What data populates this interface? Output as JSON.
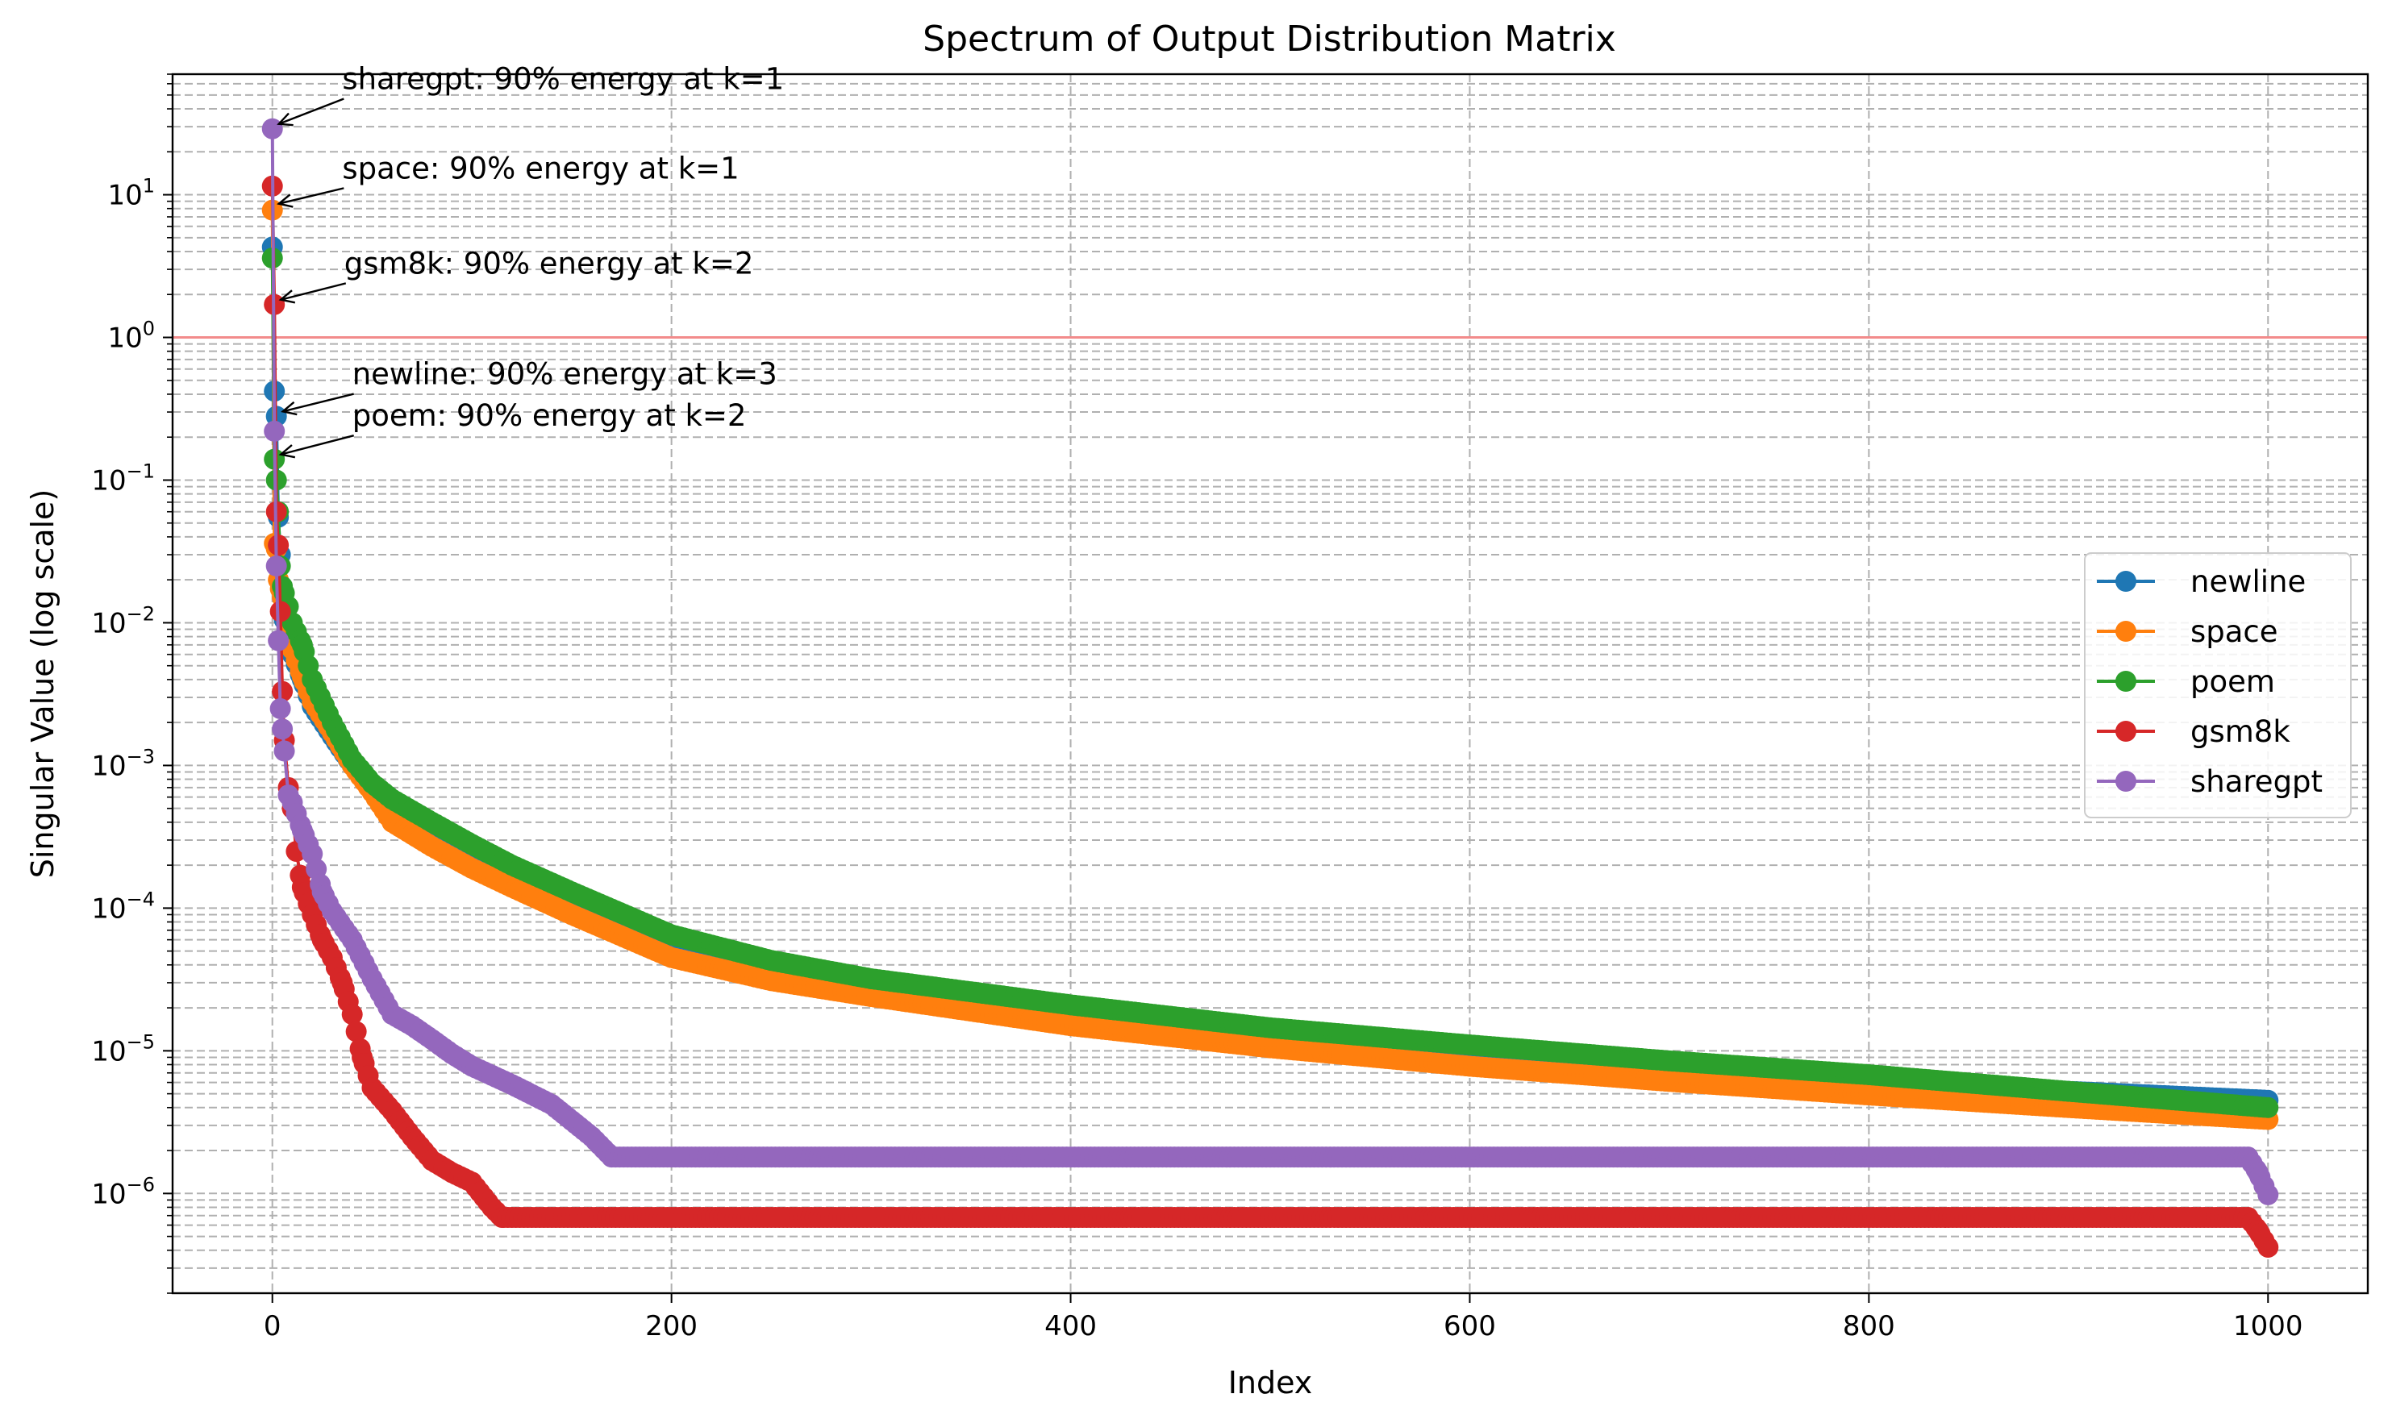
{
  "chart_data": {
    "type": "line",
    "title": "Spectrum of Output Distribution Matrix",
    "xlabel": "Index",
    "ylabel": "Singular Value (log scale)",
    "xlim": [
      -50,
      1050
    ],
    "ylim": [
      2e-07,
      70
    ],
    "yscale": "log",
    "grid": true,
    "xticks": [
      0,
      200,
      400,
      600,
      800,
      1000
    ],
    "xtick_labels": [
      "0",
      "200",
      "400",
      "600",
      "800",
      "1000"
    ],
    "yticks": [
      1e-06,
      1e-05,
      0.0001,
      0.001,
      0.01,
      0.1,
      1,
      10
    ],
    "ytick_labels": [
      {
        "base": "10",
        "exp": "−6"
      },
      {
        "base": "10",
        "exp": "−5"
      },
      {
        "base": "10",
        "exp": "−4"
      },
      {
        "base": "10",
        "exp": "−3"
      },
      {
        "base": "10",
        "exp": "−2"
      },
      {
        "base": "10",
        "exp": "−1"
      },
      {
        "base": "10",
        "exp": "0"
      },
      {
        "base": "10",
        "exp": "1"
      }
    ],
    "reference_line": {
      "y": 1,
      "color": "#f28b8b"
    },
    "legend_position": "center-right",
    "series": [
      {
        "name": "newline",
        "color": "#1f77b4",
        "points": [
          [
            0,
            4.3
          ],
          [
            1,
            0.42
          ],
          [
            2,
            0.28
          ],
          [
            3,
            0.055
          ],
          [
            4,
            0.03
          ],
          [
            5,
            0.012
          ],
          [
            8,
            0.008
          ],
          [
            10,
            0.006
          ],
          [
            15,
            0.004
          ],
          [
            20,
            0.0026
          ],
          [
            30,
            0.0016
          ],
          [
            40,
            0.001
          ],
          [
            50,
            0.0007
          ],
          [
            60,
            0.00052
          ],
          [
            80,
            0.00035
          ],
          [
            100,
            0.00023
          ],
          [
            120,
            0.00016
          ],
          [
            150,
            0.0001
          ],
          [
            200,
            5e-05
          ],
          [
            250,
            3.6e-05
          ],
          [
            300,
            2.8e-05
          ],
          [
            400,
            1.8e-05
          ],
          [
            500,
            1.25e-05
          ],
          [
            600,
            9.5e-06
          ],
          [
            700,
            7.5e-06
          ],
          [
            800,
            6.2e-06
          ],
          [
            900,
            5.2e-06
          ],
          [
            1000,
            4.5e-06
          ]
        ]
      },
      {
        "name": "space",
        "color": "#ff7f0e",
        "points": [
          [
            0,
            7.8
          ],
          [
            1,
            0.036
          ],
          [
            2,
            0.033
          ],
          [
            3,
            0.02
          ],
          [
            5,
            0.015
          ],
          [
            8,
            0.009
          ],
          [
            10,
            0.0065
          ],
          [
            15,
            0.0042
          ],
          [
            20,
            0.0028
          ],
          [
            30,
            0.0017
          ],
          [
            40,
            0.001
          ],
          [
            50,
            0.00065
          ],
          [
            60,
            0.0004
          ],
          [
            80,
            0.00027
          ],
          [
            100,
            0.00019
          ],
          [
            120,
            0.00014
          ],
          [
            150,
            9e-05
          ],
          [
            200,
            4.5e-05
          ],
          [
            250,
            3.1e-05
          ],
          [
            300,
            2.4e-05
          ],
          [
            400,
            1.5e-05
          ],
          [
            500,
            1.05e-05
          ],
          [
            600,
            7.8e-06
          ],
          [
            700,
            6.1e-06
          ],
          [
            800,
            4.9e-06
          ],
          [
            900,
            4e-06
          ],
          [
            1000,
            3.3e-06
          ]
        ]
      },
      {
        "name": "poem",
        "color": "#2ca02c",
        "points": [
          [
            0,
            3.6
          ],
          [
            1,
            0.14
          ],
          [
            2,
            0.1
          ],
          [
            3,
            0.06
          ],
          [
            4,
            0.025
          ],
          [
            5,
            0.018
          ],
          [
            8,
            0.013
          ],
          [
            10,
            0.01
          ],
          [
            15,
            0.007
          ],
          [
            20,
            0.004
          ],
          [
            30,
            0.002
          ],
          [
            40,
            0.0011
          ],
          [
            50,
            0.00075
          ],
          [
            60,
            0.00058
          ],
          [
            80,
            0.0004
          ],
          [
            100,
            0.00028
          ],
          [
            120,
            0.0002
          ],
          [
            150,
            0.00013
          ],
          [
            200,
            6.5e-05
          ],
          [
            250,
            4.3e-05
          ],
          [
            300,
            3.2e-05
          ],
          [
            400,
            2.1e-05
          ],
          [
            500,
            1.45e-05
          ],
          [
            600,
            1.1e-05
          ],
          [
            700,
            8.5e-06
          ],
          [
            800,
            6.8e-06
          ],
          [
            900,
            5.2e-06
          ],
          [
            1000,
            4e-06
          ]
        ]
      },
      {
        "name": "gsm8k",
        "color": "#d62728",
        "points": [
          [
            0,
            11.5
          ],
          [
            1,
            1.7
          ],
          [
            2,
            0.06
          ],
          [
            3,
            0.035
          ],
          [
            4,
            0.012
          ],
          [
            5,
            0.0033
          ],
          [
            6,
            0.0015
          ],
          [
            8,
            0.0007
          ],
          [
            10,
            0.0005
          ],
          [
            12,
            0.00025
          ],
          [
            15,
            0.00014
          ],
          [
            20,
            9e-05
          ],
          [
            25,
            6e-05
          ],
          [
            30,
            4.5e-05
          ],
          [
            35,
            3e-05
          ],
          [
            40,
            1.8e-05
          ],
          [
            45,
            9e-06
          ],
          [
            50,
            5.5e-06
          ],
          [
            60,
            3.8e-06
          ],
          [
            70,
            2.5e-06
          ],
          [
            80,
            1.7e-06
          ],
          [
            90,
            1.4e-06
          ],
          [
            100,
            1.2e-06
          ],
          [
            110,
            8e-07
          ],
          [
            115,
            6.8e-07
          ],
          [
            200,
            6.8e-07
          ],
          [
            400,
            6.8e-07
          ],
          [
            600,
            6.8e-07
          ],
          [
            800,
            6.8e-07
          ],
          [
            990,
            6.8e-07
          ],
          [
            995,
            5.5e-07
          ],
          [
            1000,
            4.2e-07
          ]
        ]
      },
      {
        "name": "sharegpt",
        "color": "#9467bd",
        "points": [
          [
            0,
            29
          ],
          [
            1,
            0.22
          ],
          [
            2,
            0.025
          ],
          [
            3,
            0.0075
          ],
          [
            4,
            0.0025
          ],
          [
            5,
            0.0018
          ],
          [
            8,
            0.00062
          ],
          [
            10,
            0.00055
          ],
          [
            15,
            0.00035
          ],
          [
            20,
            0.00024
          ],
          [
            25,
            0.00013
          ],
          [
            30,
            9.5e-05
          ],
          [
            40,
            6e-05
          ],
          [
            50,
            3.2e-05
          ],
          [
            60,
            1.8e-05
          ],
          [
            70,
            1.5e-05
          ],
          [
            80,
            1.2e-05
          ],
          [
            90,
            9.5e-06
          ],
          [
            100,
            7.8e-06
          ],
          [
            120,
            5.8e-06
          ],
          [
            140,
            4.2e-06
          ],
          [
            160,
            2.5e-06
          ],
          [
            170,
            1.8e-06
          ],
          [
            300,
            1.8e-06
          ],
          [
            500,
            1.8e-06
          ],
          [
            700,
            1.8e-06
          ],
          [
            900,
            1.8e-06
          ],
          [
            990,
            1.8e-06
          ],
          [
            995,
            1.4e-06
          ],
          [
            1000,
            9.8e-07
          ]
        ]
      }
    ],
    "annotations": [
      {
        "text": "sharegpt: 90% energy at k=1",
        "point": [
          0,
          29
        ],
        "text_pos": [
          35,
          55
        ]
      },
      {
        "text": "space: 90% energy at k=1",
        "point": [
          0,
          8
        ],
        "text_pos": [
          35,
          13
        ]
      },
      {
        "text": "gsm8k: 90% energy at k=2",
        "point": [
          1,
          1.7
        ],
        "text_pos": [
          36,
          2.8
        ]
      },
      {
        "text": "newline: 90% energy at k=3",
        "point": [
          2,
          0.28
        ],
        "text_pos": [
          40,
          0.47
        ]
      },
      {
        "text": "poem: 90% energy at k=2",
        "point": [
          1,
          0.14
        ],
        "text_pos": [
          40,
          0.24
        ]
      }
    ]
  }
}
